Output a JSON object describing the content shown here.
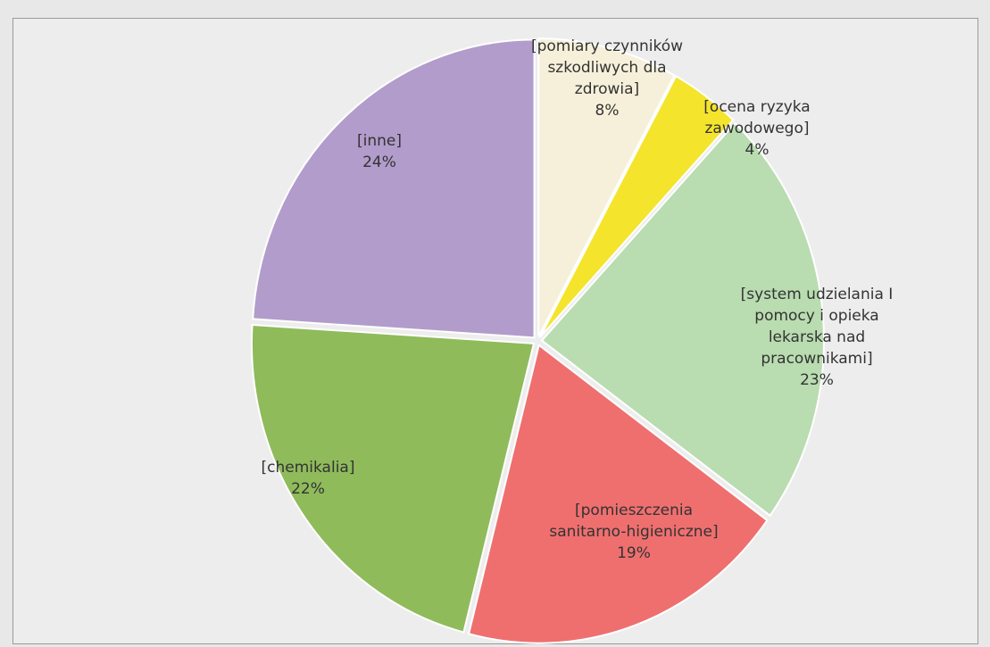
{
  "chart_data": {
    "type": "pie",
    "categories": [
      "[pomiary czynników szkodliwych dla zdrowia]",
      "[ocena ryzyka zawodowego]",
      "[system udzielania I pomocy i opieka lekarska nad pracownikami]",
      "[pomieszczenia sanitarno-higieniczne]",
      "[chemikalia]",
      "[inne]"
    ],
    "values": [
      8,
      4,
      23,
      19,
      22,
      24
    ],
    "value_labels": [
      "8%",
      "4%",
      "23%",
      "19%",
      "22%",
      "24%"
    ],
    "colors": [
      "#f6f0da",
      "#f4e42c",
      "#b9dcb0",
      "#ef6f6f",
      "#8fbb5b",
      "#b29ccb"
    ]
  }
}
